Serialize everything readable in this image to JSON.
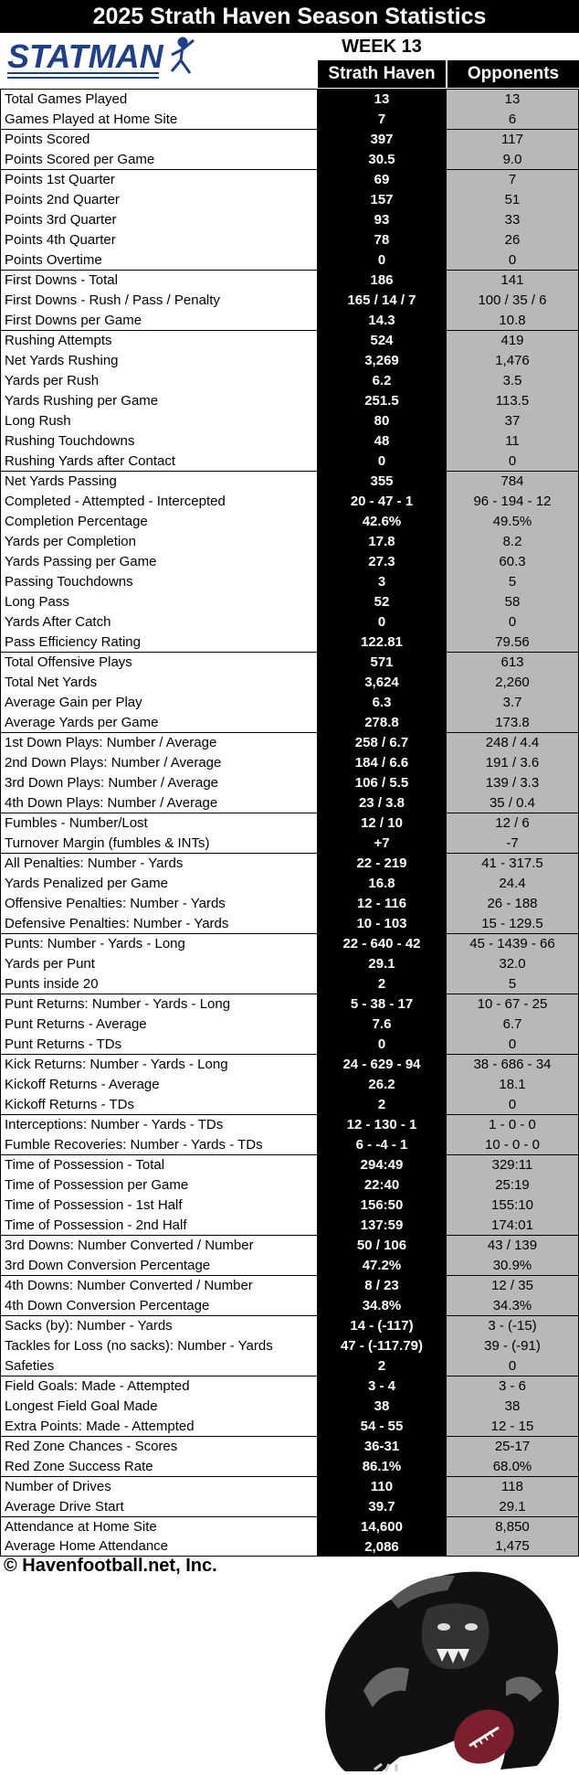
{
  "header": {
    "title": "2025 Strath Haven Season Statistics",
    "logo_text": "STATMAN",
    "week": "WEEK 13",
    "home_col": "Strath Haven",
    "opp_col": "Opponents"
  },
  "stats": [
    {
      "label": "Total Games Played",
      "home": "13",
      "opp": "13"
    },
    {
      "label": "Games Played at Home Site",
      "home": "7",
      "opp": "6"
    },
    {
      "label": "Points Scored",
      "home": "397",
      "opp": "117"
    },
    {
      "label": "Points Scored per Game",
      "home": "30.5",
      "opp": "9.0"
    },
    {
      "label": "Points 1st Quarter",
      "home": "69",
      "opp": "7"
    },
    {
      "label": "Points 2nd Quarter",
      "home": "157",
      "opp": "51"
    },
    {
      "label": "Points 3rd Quarter",
      "home": "93",
      "opp": "33"
    },
    {
      "label": "Points 4th Quarter",
      "home": "78",
      "opp": "26"
    },
    {
      "label": "Points Overtime",
      "home": "0",
      "opp": "0"
    },
    {
      "label": "First Downs - Total",
      "home": "186",
      "opp": "141"
    },
    {
      "label": "First Downs - Rush / Pass / Penalty",
      "home": "165 / 14 / 7",
      "opp": "100 / 35 / 6"
    },
    {
      "label": "First Downs per Game",
      "home": "14.3",
      "opp": "10.8"
    },
    {
      "label": "Rushing Attempts",
      "home": "524",
      "opp": "419"
    },
    {
      "label": "Net Yards Rushing",
      "home": "3,269",
      "opp": "1,476"
    },
    {
      "label": "Yards per Rush",
      "home": "6.2",
      "opp": "3.5"
    },
    {
      "label": "Yards Rushing per Game",
      "home": "251.5",
      "opp": "113.5"
    },
    {
      "label": "Long Rush",
      "home": "80",
      "opp": "37"
    },
    {
      "label": "Rushing Touchdowns",
      "home": "48",
      "opp": "11"
    },
    {
      "label": "Rushing Yards after Contact",
      "home": "0",
      "opp": "0"
    },
    {
      "label": "Net Yards Passing",
      "home": "355",
      "opp": "784"
    },
    {
      "label": "Completed - Attempted - Intercepted",
      "home": "20 - 47 - 1",
      "opp": "96 - 194 - 12"
    },
    {
      "label": "Completion Percentage",
      "home": "42.6%",
      "opp": "49.5%"
    },
    {
      "label": "Yards per Completion",
      "home": "17.8",
      "opp": "8.2"
    },
    {
      "label": "Yards Passing per Game",
      "home": "27.3",
      "opp": "60.3"
    },
    {
      "label": "Passing Touchdowns",
      "home": "3",
      "opp": "5"
    },
    {
      "label": "Long Pass",
      "home": "52",
      "opp": "58"
    },
    {
      "label": "Yards After Catch",
      "home": "0",
      "opp": "0"
    },
    {
      "label": "Pass Efficiency Rating",
      "home": "122.81",
      "opp": "79.56"
    },
    {
      "label": "Total Offensive Plays",
      "home": "571",
      "opp": "613"
    },
    {
      "label": "Total Net Yards",
      "home": "3,624",
      "opp": "2,260"
    },
    {
      "label": "Average Gain per Play",
      "home": "6.3",
      "opp": "3.7"
    },
    {
      "label": "Average Yards per Game",
      "home": "278.8",
      "opp": "173.8"
    },
    {
      "label": "1st Down Plays:  Number / Average",
      "home": "258 / 6.7",
      "opp": "248 / 4.4"
    },
    {
      "label": "2nd Down Plays:  Number / Average",
      "home": "184 / 6.6",
      "opp": "191 / 3.6"
    },
    {
      "label": "3rd Down Plays:  Number / Average",
      "home": "106 / 5.5",
      "opp": "139 / 3.3"
    },
    {
      "label": "4th Down Plays:  Number / Average",
      "home": "23 / 3.8",
      "opp": "35 / 0.4"
    },
    {
      "label": "Fumbles - Number/Lost",
      "home": "12 / 10",
      "opp": "12 / 6"
    },
    {
      "label": "Turnover Margin (fumbles & INTs)",
      "home": "+7",
      "opp": "-7"
    },
    {
      "label": "All Penalties:  Number - Yards",
      "home": "22 - 219",
      "opp": "41 - 317.5"
    },
    {
      "label": "Yards Penalized per Game",
      "home": "16.8",
      "opp": "24.4"
    },
    {
      "label": "Offensive Penalties:  Number - Yards",
      "home": "12 - 116",
      "opp": "26 - 188"
    },
    {
      "label": "Defensive Penalties:  Number - Yards",
      "home": "10 - 103",
      "opp": "15 - 129.5"
    },
    {
      "label": "Punts:  Number - Yards - Long",
      "home": "22 - 640 - 42",
      "opp": "45 - 1439 - 66"
    },
    {
      "label": "Yards per Punt",
      "home": "29.1",
      "opp": "32.0"
    },
    {
      "label": "Punts inside 20",
      "home": "2",
      "opp": "5"
    },
    {
      "label": "Punt Returns:  Number - Yards - Long",
      "home": "5 - 38 - 17",
      "opp": "10 - 67 - 25"
    },
    {
      "label": "Punt Returns - Average",
      "home": "7.6",
      "opp": "6.7"
    },
    {
      "label": "Punt Returns - TDs",
      "home": "0",
      "opp": "0"
    },
    {
      "label": "Kick Returns:  Number - Yards - Long",
      "home": "24 - 629 - 94",
      "opp": "38 - 686 - 34"
    },
    {
      "label": "Kickoff Returns - Average",
      "home": "26.2",
      "opp": "18.1"
    },
    {
      "label": "Kickoff Returns - TDs",
      "home": "2",
      "opp": "0"
    },
    {
      "label": "Interceptions: Number - Yards - TDs",
      "home": "12 - 130 - 1",
      "opp": "1 - 0 - 0"
    },
    {
      "label": "Fumble Recoveries: Number - Yards - TDs",
      "home": "6 - -4 - 1",
      "opp": "10 - 0 - 0"
    },
    {
      "label": "Time of Possession - Total",
      "home": "294:49",
      "opp": "329:11"
    },
    {
      "label": "Time of Possession per Game",
      "home": "22:40",
      "opp": "25:19"
    },
    {
      "label": "Time of Possession - 1st Half",
      "home": "156:50",
      "opp": "155:10"
    },
    {
      "label": "Time of Possession - 2nd Half",
      "home": "137:59",
      "opp": "174:01"
    },
    {
      "label": "3rd Downs:  Number Converted / Number",
      "home": "50 / 106",
      "opp": "43 / 139"
    },
    {
      "label": "3rd Down Conversion Percentage",
      "home": "47.2%",
      "opp": "30.9%"
    },
    {
      "label": "4th Downs:  Number Converted / Number",
      "home": "8 / 23",
      "opp": "12 / 35"
    },
    {
      "label": "4th Down Conversion Percentage",
      "home": "34.8%",
      "opp": "34.3%"
    },
    {
      "label": "Sacks (by):  Number - Yards",
      "home": "14 - (-117)",
      "opp": "3 - (-15)"
    },
    {
      "label": "Tackles for Loss (no sacks):  Number - Yards",
      "home": "47 - (-117.79)",
      "opp": "39 - (-91)"
    },
    {
      "label": "Safeties",
      "home": "2",
      "opp": "0"
    },
    {
      "label": "Field Goals:  Made - Attempted",
      "home": "3 - 4",
      "opp": "3 - 6"
    },
    {
      "label": "Longest Field Goal Made",
      "home": "38",
      "opp": "38"
    },
    {
      "label": "Extra Points:  Made - Attempted",
      "home": "54 - 55",
      "opp": "12 - 15"
    },
    {
      "label": "Red Zone Chances - Scores",
      "home": "36-31",
      "opp": "25-17"
    },
    {
      "label": "Red Zone Success Rate",
      "home": "86.1%",
      "opp": "68.0%"
    },
    {
      "label": "Number of Drives",
      "home": "110",
      "opp": "118"
    },
    {
      "label": "Average Drive Start",
      "home": "39.7",
      "opp": "29.1"
    },
    {
      "label": "Attendance at Home Site",
      "home": "14,600",
      "opp": "8,850"
    },
    {
      "label": "Average Home Attendance",
      "home": "2,086",
      "opp": "1,475"
    }
  ],
  "group_starts": [
    0,
    2,
    4,
    9,
    12,
    19,
    28,
    32,
    36,
    38,
    42,
    45,
    48,
    51,
    53,
    57,
    59,
    61,
    64,
    67,
    69,
    71
  ],
  "footer": {
    "copyright": "© Havenfootball.net, Inc."
  },
  "colors": {
    "home_bg": "#000000",
    "opp_bg": "#b6b8ba",
    "logo_blue": "#1f3f8a"
  },
  "icons": [
    "statman-logo",
    "panther-mascot-icon"
  ]
}
